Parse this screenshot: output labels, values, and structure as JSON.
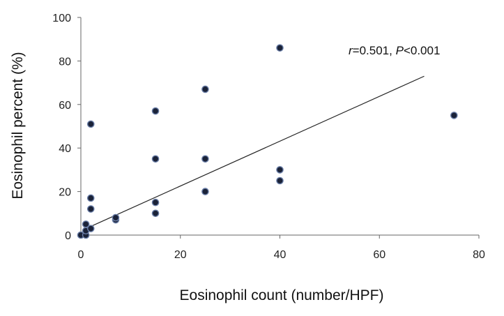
{
  "chart_data": {
    "type": "scatter",
    "title": "",
    "xlabel": "Eosinophil  count (number/HPF)",
    "ylabel": "Eosinophil  percent (%)",
    "xlim": [
      0,
      80
    ],
    "ylim": [
      0,
      100
    ],
    "xticks": [
      "0",
      "20",
      "40",
      "60",
      "80"
    ],
    "yticks": [
      "0",
      "20",
      "40",
      "60",
      "80",
      "100"
    ],
    "grid": false,
    "legend": "none",
    "points": [
      {
        "x": 0,
        "y": 0
      },
      {
        "x": 1,
        "y": 0
      },
      {
        "x": 1,
        "y": 2
      },
      {
        "x": 1,
        "y": 5
      },
      {
        "x": 2,
        "y": 3
      },
      {
        "x": 2,
        "y": 12
      },
      {
        "x": 2,
        "y": 17
      },
      {
        "x": 2,
        "y": 51
      },
      {
        "x": 7,
        "y": 7
      },
      {
        "x": 7,
        "y": 8
      },
      {
        "x": 15,
        "y": 10
      },
      {
        "x": 15,
        "y": 15
      },
      {
        "x": 15,
        "y": 35
      },
      {
        "x": 15,
        "y": 57
      },
      {
        "x": 25,
        "y": 20
      },
      {
        "x": 25,
        "y": 35
      },
      {
        "x": 25,
        "y": 67
      },
      {
        "x": 40,
        "y": 25
      },
      {
        "x": 40,
        "y": 30
      },
      {
        "x": 40,
        "y": 86
      },
      {
        "x": 75,
        "y": 55
      }
    ],
    "trendline": {
      "x": [
        2,
        69
      ],
      "y": [
        4,
        73
      ]
    },
    "annotation": {
      "r_symbol": "r",
      "r_value": "=0.501, ",
      "p_symbol": "P",
      "p_value": "<0.001"
    },
    "colors": {
      "marker": "#1a2238",
      "marker_edge": "#6b7fa8",
      "line": "#222222",
      "axis": "#666666"
    }
  }
}
